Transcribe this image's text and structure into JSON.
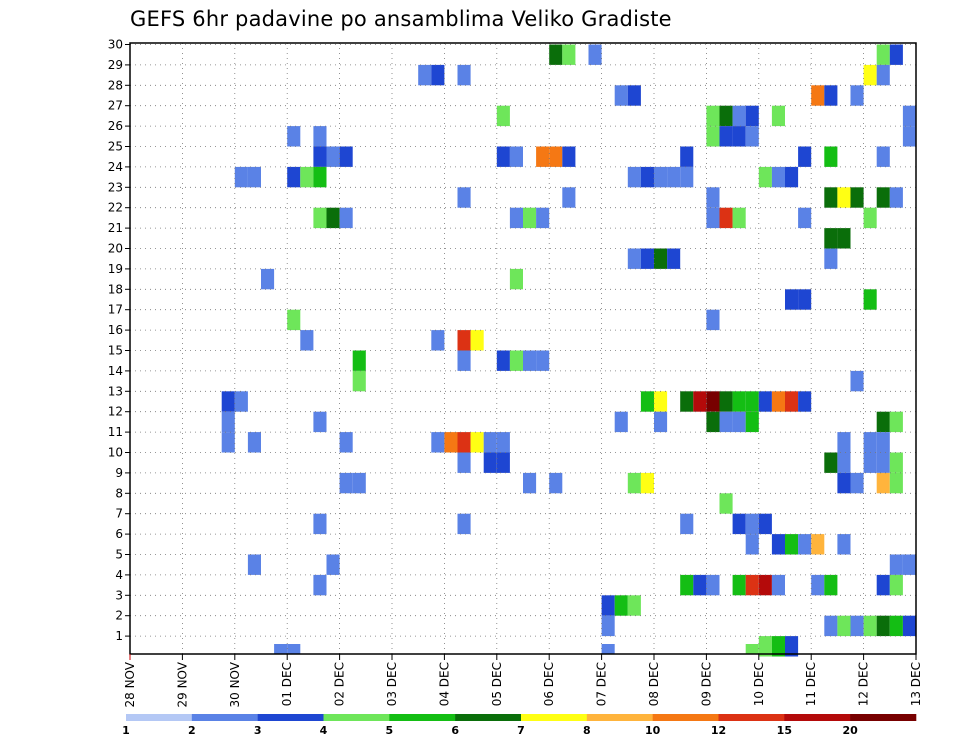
{
  "chart_data": {
    "type": "heatmap",
    "title": "GEFS 6hr padavine po ansamblima Veliko Gradiste",
    "xlabel": "",
    "ylabel": "",
    "members": [
      1,
      30
    ],
    "y_ticks": [
      "30",
      "29",
      "28",
      "27",
      "26",
      "25",
      "24",
      "23",
      "22",
      "21",
      "20",
      "19",
      "18",
      "17",
      "16",
      "15",
      "14",
      "13",
      "12",
      "11",
      "10",
      "9",
      "8",
      "7",
      "6",
      "5",
      "4",
      "3",
      "2",
      "1"
    ],
    "x_ticks": [
      "28 NOV",
      "29 NOV",
      "30 NOV",
      "01 DEC",
      "02 DEC",
      "03 DEC",
      "04 DEC",
      "05 DEC",
      "06 DEC",
      "07 DEC",
      "08 DEC",
      "09 DEC",
      "10 DEC",
      "11 DEC",
      "12 DEC",
      "13 DEC"
    ],
    "time_steps_per_day": 4,
    "legend": {
      "labels": [
        "1",
        "2",
        "3",
        "4",
        "5",
        "6",
        "7",
        "8",
        "10",
        "12",
        "15",
        "20"
      ],
      "colors": [
        "#b4c8f5",
        "#5a82e6",
        "#1e46d2",
        "#6ee65a",
        "#14be14",
        "#0a6e0a",
        "#ffff14",
        "#ffb43c",
        "#f57814",
        "#dc3214",
        "#b40a0a",
        "#780000"
      ]
    },
    "cells": [
      [
        30,
        8.0,
        5
      ],
      [
        30,
        8.25,
        3
      ],
      [
        30,
        8.75,
        1
      ],
      [
        30,
        14.25,
        3
      ],
      [
        30,
        14.5,
        2
      ],
      [
        29,
        5.5,
        1
      ],
      [
        29,
        5.75,
        2
      ],
      [
        29,
        6.25,
        1
      ],
      [
        29,
        14.0,
        6
      ],
      [
        29,
        14.25,
        1
      ],
      [
        28,
        9.25,
        1
      ],
      [
        28,
        9.5,
        2
      ],
      [
        28,
        13.0,
        8
      ],
      [
        28,
        13.25,
        2
      ],
      [
        28,
        13.75,
        1
      ],
      [
        27,
        7.0,
        3
      ],
      [
        27,
        11.0,
        3
      ],
      [
        27,
        11.25,
        5
      ],
      [
        27,
        11.5,
        1
      ],
      [
        27,
        11.75,
        2
      ],
      [
        27,
        12.25,
        3
      ],
      [
        27,
        14.75,
        1
      ],
      [
        26,
        3.0,
        1
      ],
      [
        26,
        3.5,
        1
      ],
      [
        26,
        11.0,
        3
      ],
      [
        26,
        11.25,
        2
      ],
      [
        26,
        11.5,
        2
      ],
      [
        26,
        11.75,
        1
      ],
      [
        26,
        14.75,
        1
      ],
      [
        25,
        3.5,
        2
      ],
      [
        25,
        3.75,
        1
      ],
      [
        25,
        4.0,
        2
      ],
      [
        25,
        7.0,
        2
      ],
      [
        25,
        7.25,
        1
      ],
      [
        25,
        7.75,
        8
      ],
      [
        25,
        8.0,
        8
      ],
      [
        25,
        8.25,
        2
      ],
      [
        25,
        10.5,
        2
      ],
      [
        25,
        12.75,
        2
      ],
      [
        25,
        13.25,
        4
      ],
      [
        25,
        14.25,
        1
      ],
      [
        24,
        2.0,
        1
      ],
      [
        24,
        2.25,
        1
      ],
      [
        24,
        3.0,
        2
      ],
      [
        24,
        3.25,
        3
      ],
      [
        24,
        3.5,
        4
      ],
      [
        24,
        9.5,
        1
      ],
      [
        24,
        9.75,
        2
      ],
      [
        24,
        10.0,
        1
      ],
      [
        24,
        10.25,
        1
      ],
      [
        24,
        10.5,
        1
      ],
      [
        24,
        12.0,
        3
      ],
      [
        24,
        12.25,
        1
      ],
      [
        24,
        12.5,
        2
      ],
      [
        23,
        6.25,
        1
      ],
      [
        23,
        8.25,
        1
      ],
      [
        23,
        11.0,
        1
      ],
      [
        23,
        13.25,
        5
      ],
      [
        23,
        13.5,
        6
      ],
      [
        23,
        13.75,
        5
      ],
      [
        23,
        14.25,
        5
      ],
      [
        23,
        14.5,
        1
      ],
      [
        22,
        3.5,
        3
      ],
      [
        22,
        3.75,
        5
      ],
      [
        22,
        4.0,
        1
      ],
      [
        22,
        7.25,
        1
      ],
      [
        22,
        7.5,
        3
      ],
      [
        22,
        7.75,
        1
      ],
      [
        22,
        11.0,
        1
      ],
      [
        22,
        11.25,
        9
      ],
      [
        22,
        11.5,
        3
      ],
      [
        22,
        12.75,
        1
      ],
      [
        22,
        14.0,
        3
      ],
      [
        21,
        13.25,
        5
      ],
      [
        21,
        13.5,
        5
      ],
      [
        20,
        9.5,
        1
      ],
      [
        20,
        9.75,
        2
      ],
      [
        20,
        10.0,
        5
      ],
      [
        20,
        10.25,
        2
      ],
      [
        20,
        13.25,
        1
      ],
      [
        19,
        2.5,
        1
      ],
      [
        19,
        7.25,
        3
      ],
      [
        18,
        12.5,
        2
      ],
      [
        18,
        12.75,
        2
      ],
      [
        18,
        14.0,
        4
      ],
      [
        17,
        3.0,
        3
      ],
      [
        17,
        11.0,
        1
      ],
      [
        16,
        3.25,
        1
      ],
      [
        16,
        5.75,
        1
      ],
      [
        16,
        6.25,
        9
      ],
      [
        16,
        6.5,
        6
      ],
      [
        15,
        4.25,
        4
      ],
      [
        15,
        6.25,
        1
      ],
      [
        15,
        7.0,
        2
      ],
      [
        15,
        7.25,
        3
      ],
      [
        15,
        7.5,
        1
      ],
      [
        15,
        7.75,
        1
      ],
      [
        14,
        4.25,
        3
      ],
      [
        14,
        13.75,
        1
      ],
      [
        13,
        1.75,
        2
      ],
      [
        13,
        2.0,
        1
      ],
      [
        13,
        9.75,
        4
      ],
      [
        13,
        10.0,
        6
      ],
      [
        13,
        10.5,
        5
      ],
      [
        13,
        10.75,
        10
      ],
      [
        13,
        11.0,
        11
      ],
      [
        13,
        11.25,
        5
      ],
      [
        13,
        11.5,
        4
      ],
      [
        13,
        11.75,
        4
      ],
      [
        13,
        12.0,
        2
      ],
      [
        13,
        12.25,
        8
      ],
      [
        13,
        12.5,
        9
      ],
      [
        13,
        12.75,
        2
      ],
      [
        12,
        1.75,
        1
      ],
      [
        12,
        3.5,
        1
      ],
      [
        12,
        9.25,
        1
      ],
      [
        12,
        10.0,
        1
      ],
      [
        12,
        11.0,
        5
      ],
      [
        12,
        11.25,
        1
      ],
      [
        12,
        11.5,
        1
      ],
      [
        12,
        11.75,
        4
      ],
      [
        12,
        14.25,
        5
      ],
      [
        12,
        14.5,
        3
      ],
      [
        11,
        1.75,
        1
      ],
      [
        11,
        2.25,
        1
      ],
      [
        11,
        4.0,
        1
      ],
      [
        11,
        5.75,
        1
      ],
      [
        11,
        6.0,
        8
      ],
      [
        11,
        6.25,
        9
      ],
      [
        11,
        6.5,
        6
      ],
      [
        11,
        6.75,
        1
      ],
      [
        11,
        7.0,
        1
      ],
      [
        11,
        13.5,
        1
      ],
      [
        11,
        14.0,
        1
      ],
      [
        11,
        14.25,
        1
      ],
      [
        10,
        6.25,
        1
      ],
      [
        10,
        6.75,
        2
      ],
      [
        10,
        7.0,
        2
      ],
      [
        10,
        13.25,
        5
      ],
      [
        10,
        13.5,
        1
      ],
      [
        10,
        14.0,
        1
      ],
      [
        10,
        14.25,
        1
      ],
      [
        10,
        14.5,
        3
      ],
      [
        9,
        4.0,
        1
      ],
      [
        9,
        4.25,
        1
      ],
      [
        9,
        7.5,
        1
      ],
      [
        9,
        8.0,
        1
      ],
      [
        9,
        9.5,
        3
      ],
      [
        9,
        9.75,
        6
      ],
      [
        9,
        13.5,
        2
      ],
      [
        9,
        13.75,
        1
      ],
      [
        9,
        14.25,
        7
      ],
      [
        9,
        14.5,
        3
      ],
      [
        8,
        11.25,
        3
      ],
      [
        7,
        3.5,
        1
      ],
      [
        7,
        6.25,
        1
      ],
      [
        7,
        10.5,
        1
      ],
      [
        7,
        11.5,
        2
      ],
      [
        7,
        11.75,
        1
      ],
      [
        7,
        12.0,
        2
      ],
      [
        6,
        11.75,
        1
      ],
      [
        6,
        12.25,
        2
      ],
      [
        6,
        12.5,
        4
      ],
      [
        6,
        12.75,
        1
      ],
      [
        6,
        13.0,
        7
      ],
      [
        6,
        13.5,
        1
      ],
      [
        5,
        2.25,
        1
      ],
      [
        5,
        3.75,
        1
      ],
      [
        5,
        14.5,
        1
      ],
      [
        5,
        14.75,
        1
      ],
      [
        4,
        3.5,
        1
      ],
      [
        4,
        10.5,
        4
      ],
      [
        4,
        10.75,
        2
      ],
      [
        4,
        11.0,
        1
      ],
      [
        4,
        11.5,
        4
      ],
      [
        4,
        11.75,
        9
      ],
      [
        4,
        12.0,
        10
      ],
      [
        4,
        12.25,
        1
      ],
      [
        4,
        13.0,
        1
      ],
      [
        4,
        13.25,
        4
      ],
      [
        4,
        14.25,
        2
      ],
      [
        4,
        14.5,
        3
      ],
      [
        3,
        9.0,
        2
      ],
      [
        3,
        9.25,
        4
      ],
      [
        3,
        9.5,
        3
      ],
      [
        2,
        9.0,
        1
      ],
      [
        2,
        13.25,
        1
      ],
      [
        2,
        13.5,
        3
      ],
      [
        2,
        13.75,
        1
      ],
      [
        2,
        14.0,
        3
      ],
      [
        2,
        14.25,
        5
      ],
      [
        2,
        14.5,
        4
      ],
      [
        2,
        14.75,
        2
      ],
      [
        1,
        12.0,
        3
      ],
      [
        1,
        12.25,
        4
      ],
      [
        1,
        12.5,
        2
      ],
      [
        0,
        2.75,
        1
      ],
      [
        0,
        3.0,
        1
      ],
      [
        0,
        9.0,
        1
      ],
      [
        0,
        11.75,
        3
      ]
    ]
  }
}
